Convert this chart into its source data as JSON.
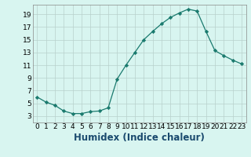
{
  "x": [
    0,
    1,
    2,
    3,
    4,
    5,
    6,
    7,
    8,
    9,
    10,
    11,
    12,
    13,
    14,
    15,
    16,
    17,
    18,
    19,
    20,
    21,
    22,
    23
  ],
  "y": [
    6,
    5.2,
    4.7,
    3.8,
    3.4,
    3.4,
    3.7,
    3.8,
    4.3,
    8.8,
    11,
    13,
    15,
    16.3,
    17.5,
    18.5,
    19.2,
    19.8,
    19.5,
    16.3,
    13.3,
    12.5,
    11.8,
    11.2
  ],
  "xlabel": "Humidex (Indice chaleur)",
  "xlim": [
    -0.5,
    23.5
  ],
  "ylim": [
    2,
    20.5
  ],
  "yticks": [
    3,
    5,
    7,
    9,
    11,
    13,
    15,
    17,
    19
  ],
  "xticks": [
    0,
    1,
    2,
    3,
    4,
    5,
    6,
    7,
    8,
    9,
    10,
    11,
    12,
    13,
    14,
    15,
    16,
    17,
    18,
    19,
    20,
    21,
    22,
    23
  ],
  "line_color": "#1a7a6e",
  "marker": "D",
  "marker_size": 2.2,
  "bg_color": "#d8f5f0",
  "grid_color": "#b8d0cc",
  "tick_label_fontsize": 6.5,
  "xlabel_fontsize": 8.5,
  "xlabel_color": "#1a4a6e"
}
